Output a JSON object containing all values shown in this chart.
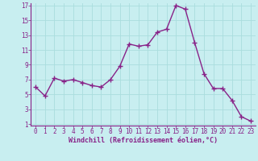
{
  "x": [
    0,
    1,
    2,
    3,
    4,
    5,
    6,
    7,
    8,
    9,
    10,
    11,
    12,
    13,
    14,
    15,
    16,
    17,
    18,
    19,
    20,
    21,
    22,
    23
  ],
  "y": [
    6.0,
    4.8,
    7.2,
    6.8,
    7.0,
    6.6,
    6.2,
    6.0,
    7.0,
    8.8,
    11.8,
    11.5,
    11.7,
    13.4,
    13.8,
    17.0,
    16.5,
    12.0,
    7.8,
    5.8,
    5.8,
    4.2,
    2.0,
    1.4
  ],
  "line_color": "#882288",
  "marker": "+",
  "marker_size": 4,
  "marker_lw": 1.0,
  "line_width": 1.0,
  "bg_color": "#c8eef0",
  "grid_color": "#aadddd",
  "xlabel": "Windchill (Refroidissement éolien,°C)",
  "xlabel_color": "#882288",
  "tick_color": "#882288",
  "spine_color": "#882288",
  "ylim": [
    1,
    17
  ],
  "xlim": [
    -0.5,
    23.5
  ],
  "yticks": [
    1,
    3,
    5,
    7,
    9,
    11,
    13,
    15,
    17
  ],
  "xticks": [
    0,
    1,
    2,
    3,
    4,
    5,
    6,
    7,
    8,
    9,
    10,
    11,
    12,
    13,
    14,
    15,
    16,
    17,
    18,
    19,
    20,
    21,
    22,
    23
  ],
  "tick_fontsize": 5.5,
  "xlabel_fontsize": 6.0
}
